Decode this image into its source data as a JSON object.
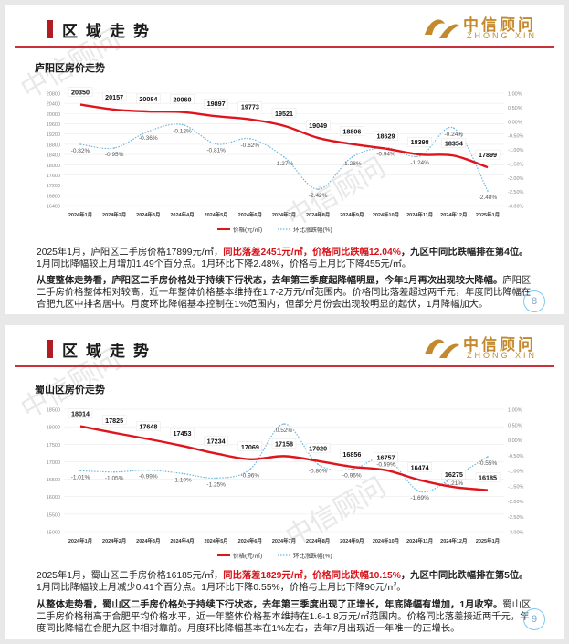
{
  "brand": {
    "name_cn": "中信顾问",
    "name_en": "ZHONG XIN",
    "watermark": "中信顾问"
  },
  "slides": [
    {
      "header": "区域走势",
      "subtitle": "庐阳区房价走势",
      "page": "8",
      "chart_data": {
        "type": "line",
        "categories": [
          "2024年1月",
          "2024年2月",
          "2024年3月",
          "2024年4月",
          "2024年5月",
          "2024年6月",
          "2024年7月",
          "2024年8月",
          "2024年9月",
          "2024年10月",
          "2024年11月",
          "2024年12月",
          "2025年1月"
        ],
        "series": [
          {
            "name": "价格(元/㎡)",
            "axis": "left",
            "color": "#e0141c",
            "values": [
              20350,
              20157,
              20084,
              20060,
              19897,
              19773,
              19521,
              19049,
              18806,
              18629,
              18398,
              18354,
              17899
            ]
          },
          {
            "name": "环比涨跌幅(%)",
            "axis": "right",
            "color": "#6fb6dc",
            "values": [
              -0.82,
              -0.95,
              -0.36,
              -0.12,
              -0.81,
              -0.62,
              -1.27,
              -2.42,
              -1.28,
              -0.94,
              -1.24,
              -0.24,
              -2.48
            ]
          }
        ],
        "left_axis": {
          "ticks": [
            16400,
            16800,
            17200,
            17600,
            18000,
            18400,
            18800,
            19200,
            19600,
            20000,
            20400,
            20800
          ],
          "min": 16400,
          "max": 20800
        },
        "right_axis": {
          "ticks": [
            "1.00%",
            "0.50%",
            "0.00%",
            "-0.50%",
            "-1.00%",
            "-1.50%",
            "-2.00%",
            "-2.50%",
            "-3.00%"
          ],
          "min": -3.0,
          "max": 1.0
        },
        "point_labels": [
          "20350",
          "20157",
          "20084",
          "20060",
          "19897",
          "19773",
          "19521",
          "19049",
          "18806",
          "18629",
          "18398",
          "18354",
          "17899"
        ],
        "pct_labels": [
          "-0.82%",
          "-0.95%",
          "-0.36%",
          "-0.12%",
          "-0.81%",
          "-0.62%",
          "-1.27%",
          "-2.42%",
          "-1.28%",
          "-0.94%",
          "-1.24%",
          "-0.24%",
          "-2.48%"
        ],
        "legend": [
          "价格(元/㎡)",
          "环比涨跌幅(%)"
        ]
      },
      "para1": {
        "a": "2025年1月，庐阳区二手房价格17899元/㎡，",
        "b": "同比落差2451元/㎡，价格同比跌幅12.04%",
        "c": "，九区中同比跌幅排在第4位。",
        "d": "1月同比降幅较上月增加1.49个百分点。1月环比下降2.48%，价格与上月比下降455元/㎡。"
      },
      "para2": {
        "a": "从度整体走势看，庐阳区二手房价格处于持续下行状态，去年第三季度起降幅明显，今年1月再次出现较大降幅。",
        "b": "庐阳区二手房价格整体相对较高，近一年整体价格基本维持在1.7-2万元/㎡范围内。价格同比落差超过两千元，年度同比降幅在合肥九区中排名居中。月度环比降幅基本控制在1%范围内，但部分月份会出现较明显的起伏，1月降幅加大。"
      }
    },
    {
      "header": "区域走势",
      "subtitle": "蜀山区房价走势",
      "page": "9",
      "chart_data": {
        "type": "line",
        "categories": [
          "2024年1月",
          "2024年2月",
          "2024年3月",
          "2024年4月",
          "2024年5月",
          "2024年6月",
          "2024年7月",
          "2024年8月",
          "2024年9月",
          "2024年10月",
          "2024年11月",
          "2024年12月",
          "2025年1月"
        ],
        "series": [
          {
            "name": "价格(元/㎡)",
            "axis": "left",
            "color": "#e0141c",
            "values": [
              18014,
              17825,
              17648,
              17453,
              17234,
              17069,
              17158,
              17020,
              16856,
              16757,
              16474,
              16275,
              16185
            ]
          },
          {
            "name": "环比涨跌幅(%)",
            "axis": "right",
            "color": "#6fb6dc",
            "values": [
              -1.01,
              -1.05,
              -0.99,
              -1.1,
              -1.25,
              -0.96,
              0.52,
              -0.8,
              -0.96,
              -0.59,
              -1.69,
              -1.21,
              -0.55
            ]
          }
        ],
        "left_axis": {
          "ticks": [
            15000,
            15500,
            16000,
            16500,
            17000,
            17500,
            18000,
            18500
          ],
          "min": 15000,
          "max": 18500
        },
        "right_axis": {
          "ticks": [
            "1.00%",
            "0.50%",
            "0.00%",
            "-0.50%",
            "-1.00%",
            "-1.50%",
            "-2.00%",
            "-2.50%",
            "-3.00%"
          ],
          "min": -3.0,
          "max": 1.0
        },
        "point_labels": [
          "18014",
          "17825",
          "17648",
          "17453",
          "17234",
          "17069",
          "17158",
          "17020",
          "16856",
          "16757",
          "16474",
          "16275",
          "16185"
        ],
        "pct_labels": [
          "-1.01%",
          "-1.05%",
          "-0.99%",
          "-1.10%",
          "-1.25%",
          "-0.96%",
          "0.52%",
          "-0.80%",
          "-0.96%",
          "-0.59%",
          "-1.69%",
          "-1.21%",
          "-0.55%"
        ],
        "legend": [
          "价格(元/㎡)",
          "环比涨跌幅(%)"
        ]
      },
      "para1": {
        "a": "2025年1月，蜀山区二手房价格16185元/㎡，",
        "b": "同比落差1829元/㎡，价格同比跌幅10.15%",
        "c": "，九区中同比跌幅排在第5位。",
        "d": "1月同比降幅较上月减少0.41个百分点。1月环比下降0.55%，价格与上月比下降90元/㎡。"
      },
      "para2": {
        "a": "从整体走势看，蜀山区二手房价格处于持续下行状态，去年第三季度出现了正增长，年底降幅有增加，1月收窄。",
        "b": "蜀山区二手房价格稍高于合肥平均价格水平，近一年整体价格基本维持在1.6-1.8万元/㎡范围内。价格同比落差接近两千元，年度同比降幅在合肥九区中相对靠前。月度环比降幅基本在1%左右，去年7月出现近一年唯一的正增长。"
      }
    }
  ]
}
